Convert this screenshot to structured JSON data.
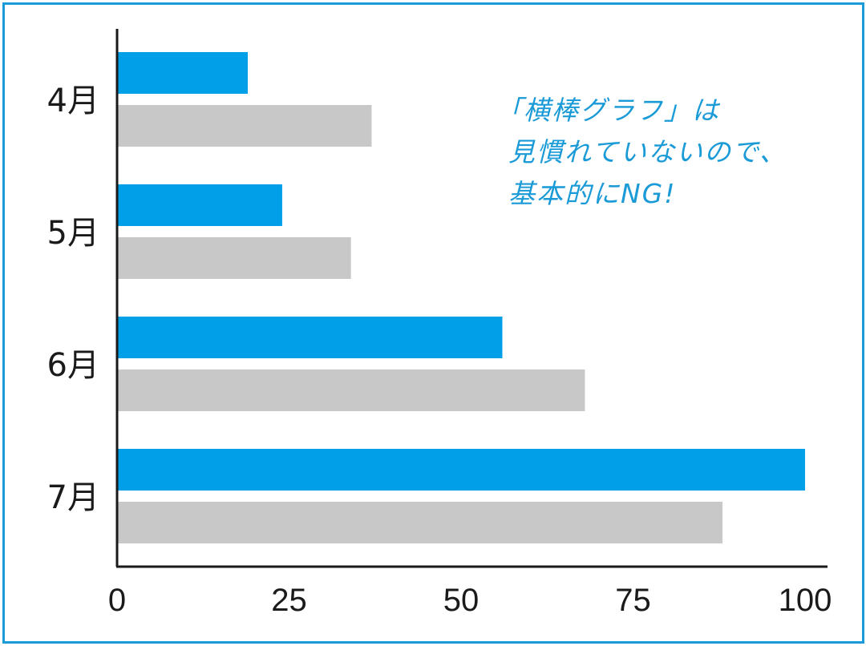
{
  "chart_data": {
    "type": "bar",
    "orientation": "horizontal",
    "categories": [
      "4月",
      "5月",
      "6月",
      "7月"
    ],
    "series": [
      {
        "values": [
          19,
          24,
          56,
          100
        ]
      },
      {
        "values": [
          37,
          34,
          68,
          88
        ]
      }
    ],
    "xlim": [
      0,
      100
    ],
    "xticks": [
      "0",
      "25",
      "50",
      "75",
      "100"
    ],
    "grid": false,
    "colors": [
      "#009fe8",
      "#c8c8c9"
    ]
  },
  "annotation": {
    "lines": [
      "「横棒グラフ」は",
      "見慣れていないので、",
      "基本的にNG!"
    ]
  },
  "colors": {
    "frame": "#1a9ad6",
    "annotation": "#1a9ad6"
  }
}
